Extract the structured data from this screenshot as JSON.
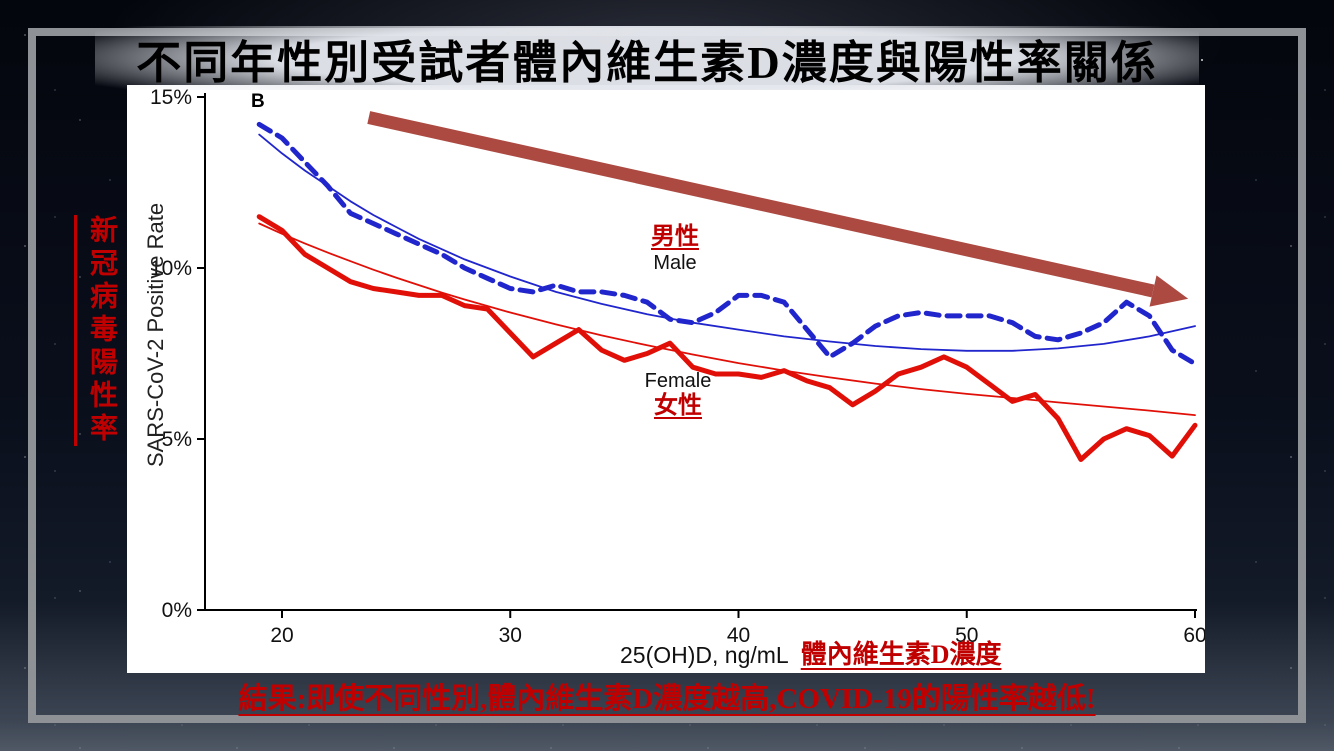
{
  "slide": {
    "title": "不同年性別受試者體內維生素D濃度與陽性率關係",
    "left_vertical_label": "新冠病毒陽性率",
    "conclusion": "結果:即使不同性別,體內維生素D濃度越高,COVID-19的陽性率越低!",
    "colors": {
      "accent_red": "#c00000",
      "male_blue": "#2126cc",
      "female_red": "#e01008",
      "arrow": "#ac4a42",
      "frame_gray": "#8e9195"
    }
  },
  "chart_data": {
    "type": "line",
    "panel_label": "B",
    "xlabel": "25(OH)D, ng/mL",
    "xlabel_zh": "體內維生素D濃度",
    "ylabel": "SARS-CoV-2 Positive Rate",
    "x_ticks": [
      20,
      30,
      40,
      50,
      60
    ],
    "y_ticks": [
      {
        "value": 15,
        "label": "15%"
      },
      {
        "value": 10,
        "label": "10%"
      },
      {
        "value": 5,
        "label": "5%"
      },
      {
        "value": 0,
        "label": "0%"
      }
    ],
    "xlim": [
      18,
      61.5
    ],
    "ylim": [
      0,
      15.5
    ],
    "grid": false,
    "legend": {
      "male_zh": "男性",
      "male_en": "Male",
      "female_en": "Female",
      "female_zh": "女性"
    },
    "trend_arrow": {
      "from": [
        23.8,
        14.4
      ],
      "to": [
        59.7,
        9.1
      ],
      "color": "#ac4a42"
    },
    "series": [
      {
        "id": "male-trend",
        "name": "Male smoothed trend",
        "color": "#2126cc",
        "width": 1.8,
        "dash": null,
        "x": [
          19,
          20,
          21,
          22,
          23,
          24,
          25,
          26,
          27,
          28,
          30,
          32,
          34,
          36,
          38,
          40,
          42,
          44,
          46,
          48,
          50,
          52,
          54,
          56,
          58,
          60
        ],
        "y": [
          13.9,
          13.35,
          12.85,
          12.4,
          11.95,
          11.55,
          11.2,
          10.85,
          10.55,
          10.25,
          9.75,
          9.3,
          8.95,
          8.65,
          8.4,
          8.2,
          8.0,
          7.85,
          7.72,
          7.63,
          7.58,
          7.58,
          7.65,
          7.78,
          8.0,
          8.3
        ]
      },
      {
        "id": "female-trend",
        "name": "Female smoothed trend",
        "color": "#e01008",
        "width": 1.8,
        "dash": null,
        "x": [
          19,
          20,
          21,
          22,
          23,
          24,
          25,
          26,
          27,
          28,
          30,
          32,
          34,
          36,
          38,
          40,
          42,
          44,
          46,
          48,
          50,
          52,
          54,
          56,
          58,
          60
        ],
        "y": [
          11.3,
          11.0,
          10.72,
          10.45,
          10.2,
          9.95,
          9.72,
          9.5,
          9.28,
          9.08,
          8.7,
          8.35,
          8.03,
          7.74,
          7.47,
          7.22,
          7.0,
          6.8,
          6.62,
          6.46,
          6.32,
          6.2,
          6.07,
          5.95,
          5.83,
          5.7
        ]
      },
      {
        "id": "male",
        "name": "Male",
        "color": "#2126cc",
        "width": 5,
        "dash": "13 8",
        "x": [
          19,
          20,
          21,
          22,
          23,
          24,
          25,
          26,
          27,
          28,
          29,
          30,
          31,
          32,
          33,
          34,
          35,
          36,
          37,
          38,
          39,
          40,
          41,
          42,
          43,
          44,
          45,
          46,
          47,
          48,
          49,
          50,
          51,
          52,
          53,
          54,
          55,
          56,
          57,
          58,
          59,
          60
        ],
        "y": [
          14.2,
          13.8,
          13.1,
          12.4,
          11.6,
          11.3,
          11.0,
          10.7,
          10.4,
          10.0,
          9.7,
          9.4,
          9.3,
          9.5,
          9.3,
          9.3,
          9.2,
          9.0,
          8.5,
          8.4,
          8.7,
          9.2,
          9.2,
          9.0,
          8.2,
          7.4,
          7.8,
          8.3,
          8.6,
          8.7,
          8.6,
          8.6,
          8.6,
          8.4,
          8.0,
          7.9,
          8.1,
          8.4,
          9.0,
          8.6,
          7.6,
          7.2
        ]
      },
      {
        "id": "female",
        "name": "Female",
        "color": "#e01008",
        "width": 5,
        "dash": null,
        "x": [
          19,
          20,
          21,
          22,
          23,
          24,
          25,
          26,
          27,
          28,
          29,
          30,
          31,
          32,
          33,
          34,
          35,
          36,
          37,
          38,
          39,
          40,
          41,
          42,
          43,
          44,
          45,
          46,
          47,
          48,
          49,
          50,
          51,
          52,
          53,
          54,
          55,
          56,
          57,
          58,
          59,
          60
        ],
        "y": [
          11.5,
          11.1,
          10.4,
          10.0,
          9.6,
          9.4,
          9.3,
          9.2,
          9.2,
          8.9,
          8.8,
          8.1,
          7.4,
          7.8,
          8.2,
          7.6,
          7.3,
          7.5,
          7.8,
          7.1,
          6.9,
          6.9,
          6.8,
          7.0,
          6.7,
          6.5,
          6.0,
          6.4,
          6.9,
          7.1,
          7.4,
          7.1,
          6.6,
          6.1,
          6.3,
          5.6,
          4.4,
          5.0,
          5.3,
          5.1,
          4.5,
          5.4
        ]
      }
    ]
  }
}
